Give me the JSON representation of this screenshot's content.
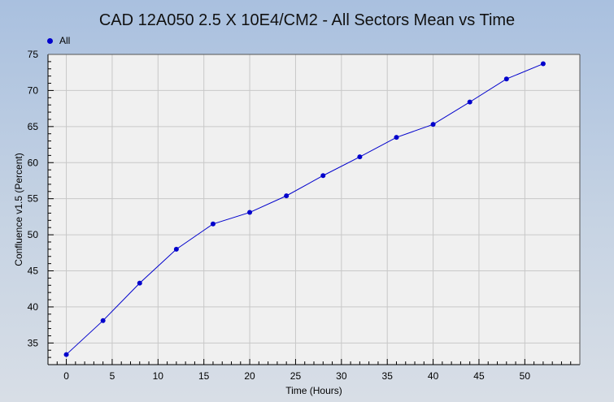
{
  "chart_data": {
    "type": "line",
    "title": "CAD 12A050 2.5 X 10E4/CM2 - All Sectors Mean vs Time",
    "xlabel": "Time (Hours)",
    "ylabel": "Confluence v1.5 (Percent)",
    "xlim": [
      -2,
      56
    ],
    "ylim": [
      32,
      75
    ],
    "x_ticks": [
      0,
      5,
      10,
      15,
      20,
      25,
      30,
      35,
      40,
      45,
      50
    ],
    "y_ticks": [
      35,
      40,
      45,
      50,
      55,
      60,
      65,
      70,
      75
    ],
    "grid": true,
    "legend_position": "top-left",
    "series": [
      {
        "name": "All",
        "color": "#0000cc",
        "x": [
          0,
          4,
          8,
          12,
          16,
          20,
          24,
          28,
          32,
          36,
          40,
          44,
          48,
          52
        ],
        "values": [
          33.4,
          38.1,
          43.3,
          48.0,
          51.5,
          53.1,
          55.4,
          58.2,
          60.8,
          63.5,
          65.3,
          68.4,
          71.6,
          73.7
        ]
      }
    ]
  }
}
